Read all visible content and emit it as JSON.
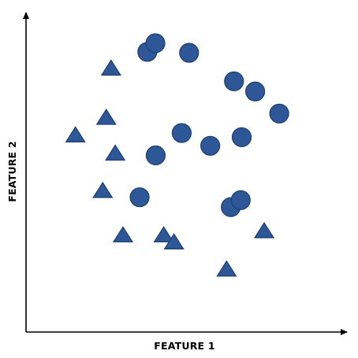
{
  "chart_data": {
    "type": "scatter",
    "xlabel": "FEATURE 1",
    "ylabel": "FEATURE 2",
    "xlim": [
      0,
      100
    ],
    "ylim": [
      0,
      100
    ],
    "ticks": "none",
    "grid": false,
    "legend": "none",
    "marker_fill": "#2E5797",
    "marker_stroke": "#1F3F73",
    "axis_color": "#000000",
    "series": [
      {
        "marker": "circle",
        "points": [
          {
            "x": 37.8,
            "y": 87.7
          },
          {
            "x": 40.3,
            "y": 90.4
          },
          {
            "x": 50.8,
            "y": 87.4
          },
          {
            "x": 64.8,
            "y": 78.5
          },
          {
            "x": 71.4,
            "y": 75.3
          },
          {
            "x": 78.9,
            "y": 68.4
          },
          {
            "x": 48.5,
            "y": 62.3
          },
          {
            "x": 57.4,
            "y": 58.3
          },
          {
            "x": 67.2,
            "y": 61.0
          },
          {
            "x": 40.4,
            "y": 55.3
          },
          {
            "x": 35.4,
            "y": 42.2
          },
          {
            "x": 63.8,
            "y": 39.1
          },
          {
            "x": 66.9,
            "y": 41.3
          }
        ]
      },
      {
        "marker": "triangle",
        "points": [
          {
            "x": 26.5,
            "y": 82.2
          },
          {
            "x": 25.0,
            "y": 66.8
          },
          {
            "x": 15.4,
            "y": 61.3
          },
          {
            "x": 27.8,
            "y": 55.6
          },
          {
            "x": 23.9,
            "y": 43.9
          },
          {
            "x": 30.2,
            "y": 30.0
          },
          {
            "x": 42.9,
            "y": 30.0
          },
          {
            "x": 46.1,
            "y": 27.8
          },
          {
            "x": 62.5,
            "y": 19.3
          },
          {
            "x": 74.2,
            "y": 31.3
          }
        ]
      }
    ]
  }
}
